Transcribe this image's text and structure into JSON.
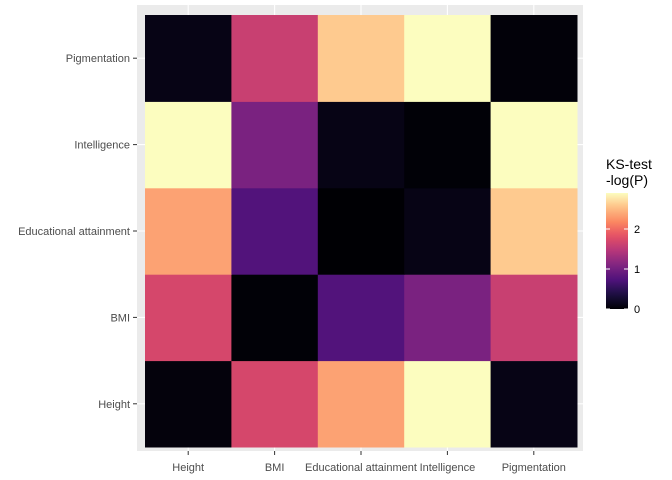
{
  "chart_data": {
    "type": "heatmap",
    "title": "",
    "xlabel": "",
    "ylabel": "",
    "x_categories": [
      "Height",
      "BMI",
      "Educational attainment",
      "Intelligence",
      "Pigmentation"
    ],
    "y_categories": [
      "Height",
      "BMI",
      "Educational attainment",
      "Intelligence",
      "Pigmentation"
    ],
    "values": [
      [
        0.05,
        1.7,
        2.35,
        2.9,
        0.1
      ],
      [
        1.7,
        0.02,
        0.75,
        1.05,
        1.6
      ],
      [
        2.35,
        0.75,
        0.0,
        0.1,
        2.6
      ],
      [
        2.9,
        1.05,
        0.1,
        0.02,
        3.1
      ],
      [
        0.1,
        1.6,
        2.6,
        3.1,
        0.03
      ]
    ],
    "value_range": [
      0,
      2.9
    ],
    "colormap": "magma",
    "panel_background": "#ebebeb",
    "grid": true,
    "legend": {
      "title_line1": "KS-test",
      "title_line2": "-log(P)",
      "position": "right",
      "ticks": [
        0,
        1,
        2
      ],
      "tick_labels": [
        "0",
        "1",
        "2"
      ]
    }
  }
}
